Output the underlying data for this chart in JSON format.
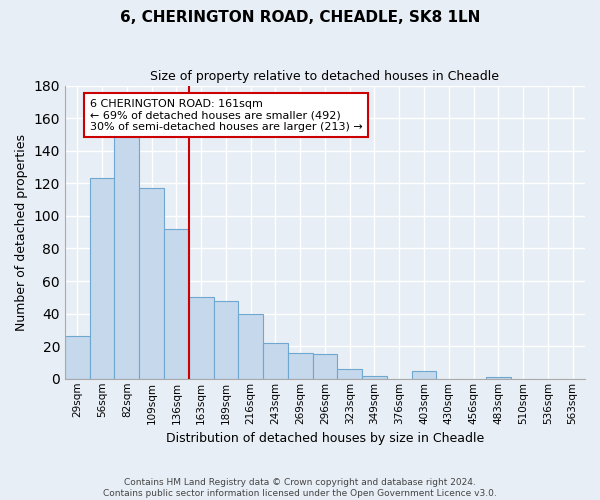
{
  "title": "6, CHERINGTON ROAD, CHEADLE, SK8 1LN",
  "subtitle": "Size of property relative to detached houses in Cheadle",
  "xlabel": "Distribution of detached houses by size in Cheadle",
  "ylabel": "Number of detached properties",
  "bar_values": [
    26,
    123,
    150,
    117,
    92,
    50,
    48,
    40,
    22,
    16,
    15,
    6,
    2,
    0,
    5,
    0,
    0,
    1,
    0,
    0,
    0
  ],
  "x_tick_labels": [
    "29sqm",
    "56sqm",
    "82sqm",
    "109sqm",
    "136sqm",
    "163sqm",
    "189sqm",
    "216sqm",
    "243sqm",
    "269sqm",
    "296sqm",
    "323sqm",
    "349sqm",
    "376sqm",
    "403sqm",
    "430sqm",
    "456sqm",
    "483sqm",
    "510sqm",
    "536sqm",
    "563sqm"
  ],
  "bar_color": "#c5d8ec",
  "bar_edge_color": "#6ea8d0",
  "vline_index": 5,
  "vline_color": "#cc0000",
  "annotation_title": "6 CHERINGTON ROAD: 161sqm",
  "annotation_line1": "← 69% of detached houses are smaller (492)",
  "annotation_line2": "30% of semi-detached houses are larger (213) →",
  "annotation_box_color": "#ffffff",
  "annotation_box_edge_color": "#cc0000",
  "ylim": [
    0,
    180
  ],
  "yticks": [
    0,
    20,
    40,
    60,
    80,
    100,
    120,
    140,
    160,
    180
  ],
  "footer_line1": "Contains HM Land Registry data © Crown copyright and database right 2024.",
  "footer_line2": "Contains public sector information licensed under the Open Government Licence v3.0.",
  "background_color": "#e8eef5",
  "plot_background_color": "#e8eef5",
  "grid_color": "#ffffff",
  "figsize": [
    6.0,
    5.0
  ],
  "dpi": 100
}
